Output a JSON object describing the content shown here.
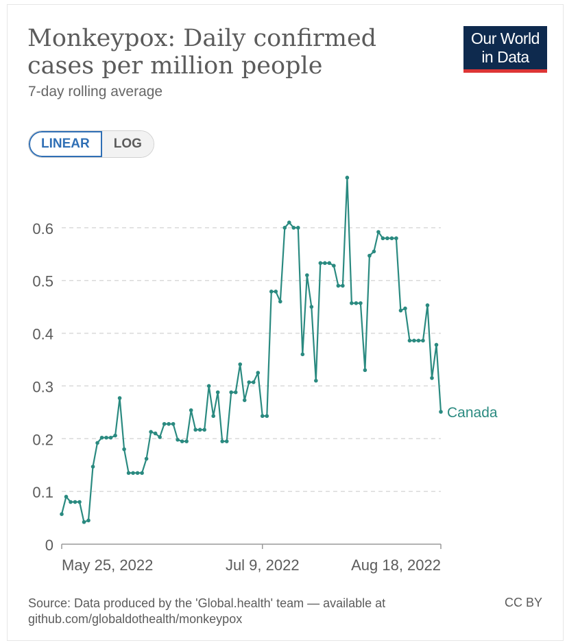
{
  "header": {
    "title": "Monkeypox: Daily confirmed cases per million people",
    "subtitle": "7-day rolling average"
  },
  "logo": {
    "line1": "Our World",
    "line2": "in Data"
  },
  "scale_toggle": {
    "linear_label": "LINEAR",
    "log_label": "LOG",
    "selected": "linear"
  },
  "footer": {
    "source": "Source: Data produced by the 'Global.health' team — available at github.com/globaldothealth/monkeypox",
    "license": "CC BY"
  },
  "colors": {
    "series": "#2a8a80",
    "grid": "#d9d9d9",
    "axis": "#999999",
    "text": "#5b5b5b"
  },
  "chart_data": {
    "type": "line",
    "title": "Monkeypox: Daily confirmed cases per million people",
    "subtitle": "7-day rolling average",
    "x_axis": {
      "type": "date",
      "start": "2022-05-25",
      "end": "2022-08-18",
      "ticks": [
        {
          "date": "2022-05-25",
          "label": "May 25, 2022"
        },
        {
          "date": "2022-07-09",
          "label": "Jul 9, 2022"
        },
        {
          "date": "2022-08-18",
          "label": "Aug 18, 2022"
        }
      ]
    },
    "y_axis": {
      "min": 0,
      "max": 0.7,
      "ticks": [
        0,
        0.1,
        0.2,
        0.3,
        0.4,
        0.5,
        0.6
      ],
      "tick_labels": [
        "0",
        "0.1",
        "0.2",
        "0.3",
        "0.4",
        "0.5",
        "0.6"
      ],
      "grid": true
    },
    "legend": "end-of-line label",
    "series": [
      {
        "name": "Canada",
        "dates": [
          "2022-05-25",
          "2022-05-26",
          "2022-05-27",
          "2022-05-28",
          "2022-05-29",
          "2022-05-30",
          "2022-05-31",
          "2022-06-01",
          "2022-06-02",
          "2022-06-03",
          "2022-06-04",
          "2022-06-05",
          "2022-06-06",
          "2022-06-07",
          "2022-06-08",
          "2022-06-09",
          "2022-06-10",
          "2022-06-11",
          "2022-06-12",
          "2022-06-13",
          "2022-06-14",
          "2022-06-15",
          "2022-06-16",
          "2022-06-17",
          "2022-06-18",
          "2022-06-19",
          "2022-06-20",
          "2022-06-21",
          "2022-06-22",
          "2022-06-23",
          "2022-06-24",
          "2022-06-25",
          "2022-06-26",
          "2022-06-27",
          "2022-06-28",
          "2022-06-29",
          "2022-06-30",
          "2022-07-01",
          "2022-07-02",
          "2022-07-03",
          "2022-07-04",
          "2022-07-05",
          "2022-07-06",
          "2022-07-07",
          "2022-07-08",
          "2022-07-09",
          "2022-07-10",
          "2022-07-11",
          "2022-07-12",
          "2022-07-13",
          "2022-07-14",
          "2022-07-15",
          "2022-07-16",
          "2022-07-17",
          "2022-07-18",
          "2022-07-19",
          "2022-07-20",
          "2022-07-21",
          "2022-07-22",
          "2022-07-23",
          "2022-07-24",
          "2022-07-25",
          "2022-07-26",
          "2022-07-27",
          "2022-07-28",
          "2022-07-29",
          "2022-07-30",
          "2022-07-31",
          "2022-08-01",
          "2022-08-02",
          "2022-08-03",
          "2022-08-04",
          "2022-08-05",
          "2022-08-06",
          "2022-08-07",
          "2022-08-08",
          "2022-08-09",
          "2022-08-10",
          "2022-08-11",
          "2022-08-12",
          "2022-08-13",
          "2022-08-14",
          "2022-08-15",
          "2022-08-16",
          "2022-08-17",
          "2022-08-18"
        ],
        "values": [
          0.057,
          0.09,
          0.08,
          0.08,
          0.08,
          0.042,
          0.045,
          0.147,
          0.192,
          0.202,
          0.202,
          0.202,
          0.206,
          0.277,
          0.18,
          0.135,
          0.135,
          0.135,
          0.135,
          0.162,
          0.213,
          0.21,
          0.203,
          0.228,
          0.228,
          0.228,
          0.198,
          0.195,
          0.195,
          0.254,
          0.217,
          0.217,
          0.217,
          0.3,
          0.243,
          0.288,
          0.195,
          0.195,
          0.288,
          0.288,
          0.341,
          0.273,
          0.307,
          0.307,
          0.325,
          0.243,
          0.243,
          0.479,
          0.479,
          0.46,
          0.6,
          0.61,
          0.6,
          0.6,
          0.36,
          0.51,
          0.45,
          0.31,
          0.533,
          0.533,
          0.533,
          0.528,
          0.49,
          0.49,
          0.695,
          0.457,
          0.457,
          0.457,
          0.33,
          0.547,
          0.555,
          0.592,
          0.58,
          0.58,
          0.58,
          0.58,
          0.443,
          0.447,
          0.386,
          0.386,
          0.386,
          0.386,
          0.453,
          0.315,
          0.378,
          0.251
        ]
      }
    ]
  }
}
